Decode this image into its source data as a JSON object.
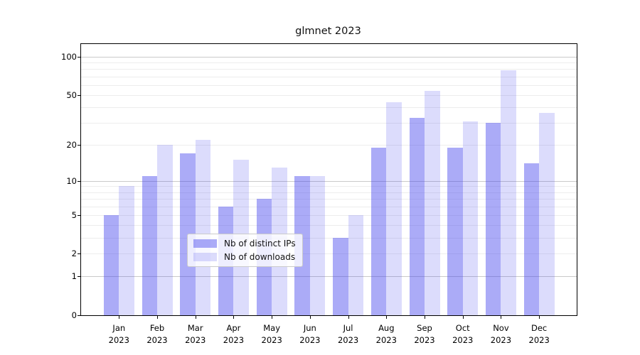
{
  "chart_data": {
    "type": "bar",
    "title": "glmnet 2023",
    "categories": [
      "Jan",
      "Feb",
      "Mar",
      "Apr",
      "May",
      "Jun",
      "Jul",
      "Aug",
      "Sep",
      "Oct",
      "Nov",
      "Dec"
    ],
    "category_year": "2023",
    "series": [
      {
        "name": "Nb of distinct IPs",
        "color": "#4444ee",
        "alpha": 0.45,
        "values": [
          5,
          11,
          17,
          6,
          7,
          11,
          3,
          19,
          33,
          19,
          30,
          14
        ]
      },
      {
        "name": "Nb of downloads",
        "color": "#4444ee",
        "alpha": 0.19,
        "values": [
          9,
          20,
          22,
          15,
          13,
          11,
          5,
          44,
          54,
          31,
          78,
          36
        ]
      }
    ],
    "yscale": "log1p",
    "ylim": [
      0,
      126
    ],
    "ytick_labels": [
      "0",
      "1",
      "2",
      "5",
      "10",
      "20",
      "50",
      "100"
    ],
    "ytick_values": [
      0,
      1,
      2,
      5,
      10,
      20,
      50,
      100
    ],
    "grid_major": [
      1,
      10,
      100
    ],
    "grid_minor": [
      2,
      3,
      4,
      5,
      6,
      7,
      8,
      9,
      20,
      30,
      40,
      50,
      60,
      70,
      80,
      90
    ],
    "grid": true,
    "legend_position": "lower center",
    "xlabel": "",
    "ylabel": ""
  }
}
